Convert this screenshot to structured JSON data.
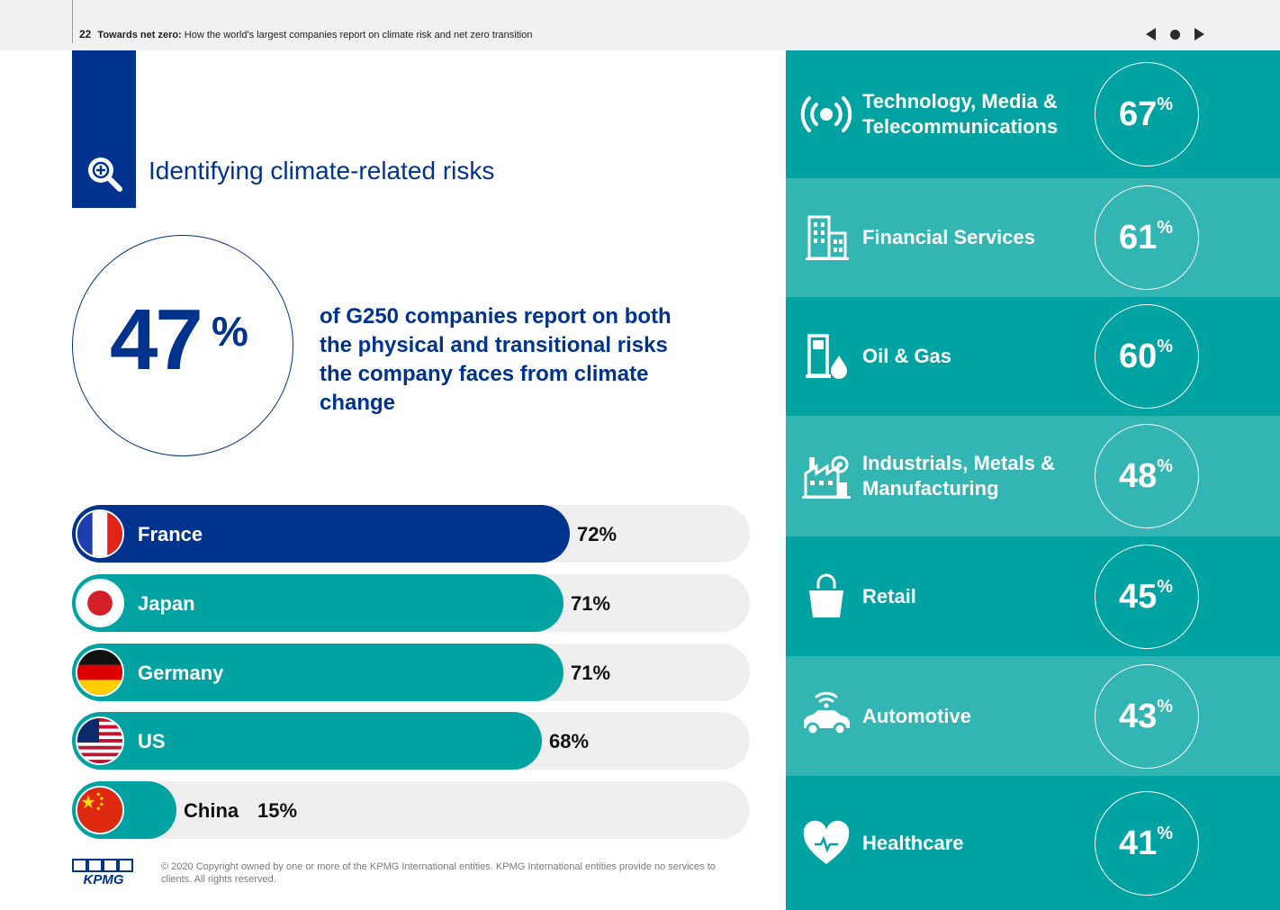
{
  "header": {
    "page_number": "22",
    "report_title": "Towards net zero:",
    "report_subtitle": "How the world's largest companies report on climate risk and net zero transition"
  },
  "section": {
    "title": "Identifying climate-related risks"
  },
  "highlight": {
    "value": "47",
    "unit": "%",
    "description": "of G250 companies report on both the physical and transitional risks the company faces from climate change"
  },
  "chart_data": [
    {
      "type": "bar",
      "orientation": "horizontal",
      "categories": [
        "France",
        "Japan",
        "Germany",
        "US",
        "China"
      ],
      "values": [
        72,
        71,
        71,
        68,
        15
      ],
      "value_labels": [
        "72%",
        "71%",
        "71%",
        "68%",
        "15%"
      ],
      "colors": [
        "#00338d",
        "#00a3a1",
        "#00a3a1",
        "#00a3a1",
        "#00a3a1"
      ],
      "xlim": [
        0,
        100
      ]
    },
    {
      "type": "table",
      "categories": [
        "Technology, Media & Telecommunications",
        "Financial Services",
        "Oil & Gas",
        "Industrials, Metals & Manufacturing",
        "Retail",
        "Automotive",
        "Healthcare"
      ],
      "values": [
        67,
        61,
        60,
        48,
        45,
        43,
        41
      ],
      "unit": "%"
    }
  ],
  "sectors": [
    {
      "name": "Technology, Media & Telecommunications",
      "value": "67",
      "unit": "%",
      "icon": "broadcast-icon",
      "bg": "#00a3a1"
    },
    {
      "name": "Financial Services",
      "value": "61",
      "unit": "%",
      "icon": "building-icon",
      "bg": "#33b5b3"
    },
    {
      "name": "Oil & Gas",
      "value": "60",
      "unit": "%",
      "icon": "fuel-pump-icon",
      "bg": "#00a3a1"
    },
    {
      "name": "Industrials, Metals & Manufacturing",
      "value": "48",
      "unit": "%",
      "icon": "factory-icon",
      "bg": "#33b5b3"
    },
    {
      "name": "Retail",
      "value": "45",
      "unit": "%",
      "icon": "shopping-bag-icon",
      "bg": "#00a3a1"
    },
    {
      "name": "Automotive",
      "value": "43",
      "unit": "%",
      "icon": "connected-car-icon",
      "bg": "#33b5b3"
    },
    {
      "name": "Healthcare",
      "value": "41",
      "unit": "%",
      "icon": "heart-icon",
      "bg": "#00a3a1"
    }
  ],
  "footer": {
    "logo": "KPMG",
    "copyright": "© 2020 Copyright owned by one or more of the KPMG International entities. KPMG International entities provide no services to clients.  All rights reserved."
  },
  "colors": {
    "primary": "#00338d",
    "teal": "#00a3a1",
    "teal_light": "#33b5b3",
    "track": "#efefef"
  }
}
